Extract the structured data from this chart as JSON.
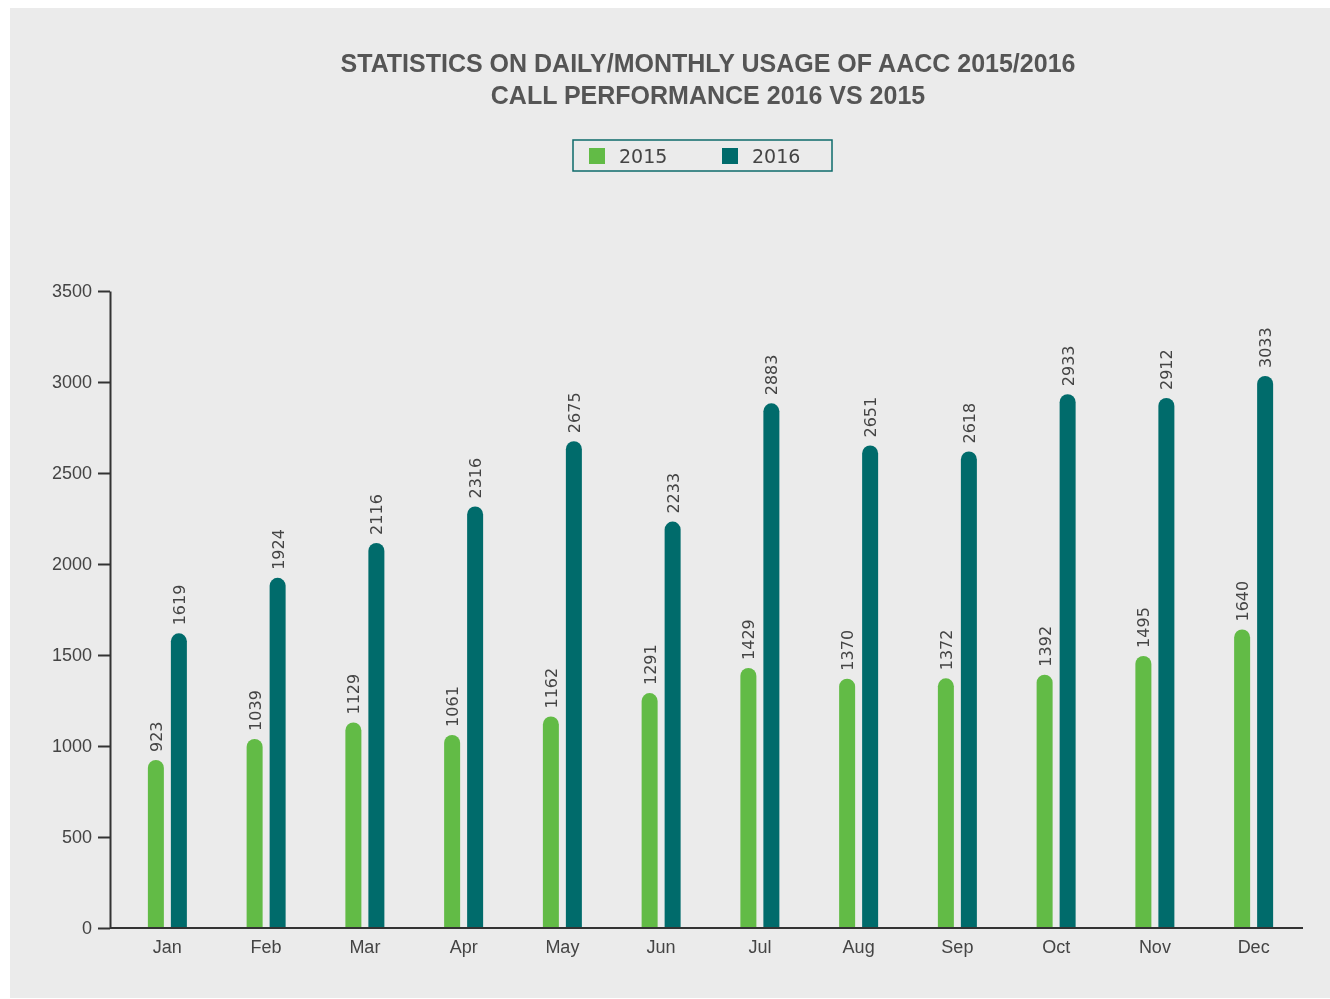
{
  "chart_data": {
    "type": "bar",
    "title": "STATISTICS ON DAILY/MONTHLY USAGE OF AACC 2015/2016",
    "subtitle": "CALL PERFORMANCE 2016 VS 2015",
    "categories": [
      "Jan",
      "Feb",
      "Mar",
      "Apr",
      "May",
      "Jun",
      "Jul",
      "Aug",
      "Sep",
      "Oct",
      "Nov",
      "Dec"
    ],
    "series": [
      {
        "name": "2015",
        "color": "#62bb46",
        "values": [
          923,
          1039,
          1129,
          1061,
          1162,
          1291,
          1429,
          1370,
          1372,
          1392,
          1495,
          1640
        ]
      },
      {
        "name": "2016",
        "color": "#006b6b",
        "values": [
          1619,
          1924,
          2116,
          2316,
          2675,
          2233,
          2883,
          2651,
          2618,
          2933,
          2912,
          3033
        ]
      }
    ],
    "ylim": [
      0,
      3500
    ],
    "yticks": [
      0,
      500,
      1000,
      1500,
      2000,
      2500,
      3000,
      3500
    ],
    "grid": false,
    "legend": "top",
    "data_labels": true
  }
}
